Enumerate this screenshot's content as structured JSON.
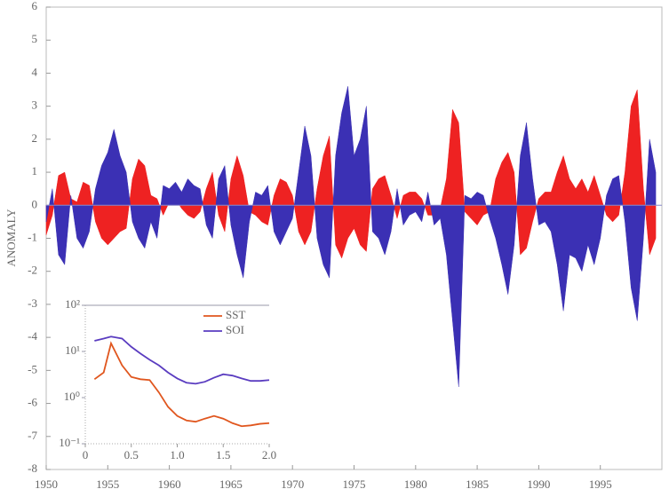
{
  "chart_data": [
    {
      "type": "area",
      "ylabel": "ANOMALY",
      "x": [
        1950,
        1950.5,
        1951,
        1951.5,
        1952,
        1952.5,
        1953,
        1953.5,
        1954,
        1954.5,
        1955,
        1955.5,
        1956,
        1956.5,
        1957,
        1957.5,
        1958,
        1958.5,
        1959,
        1959.5,
        1960,
        1960.5,
        1961,
        1961.5,
        1962,
        1962.5,
        1963,
        1963.5,
        1964,
        1964.5,
        1965,
        1965.5,
        1966,
        1966.5,
        1967,
        1967.5,
        1968,
        1968.5,
        1969,
        1969.5,
        1970,
        1970.5,
        1971,
        1971.5,
        1972,
        1972.5,
        1973,
        1973.5,
        1974,
        1974.5,
        1975,
        1975.5,
        1976,
        1976.5,
        1977,
        1977.5,
        1978,
        1978.5,
        1979,
        1979.5,
        1980,
        1980.5,
        1981,
        1981.5,
        1982,
        1982.5,
        1983,
        1983.5,
        1984,
        1984.5,
        1985,
        1985.5,
        1986,
        1986.5,
        1987,
        1987.5,
        1988,
        1988.5,
        1989,
        1989.5,
        1990,
        1990.5,
        1991,
        1991.5,
        1992,
        1992.5,
        1993,
        1993.5,
        1994,
        1994.5,
        1995,
        1995.5,
        1996,
        1996.5,
        1997,
        1997.5,
        1998,
        1998.5,
        1999,
        1999.5
      ],
      "series": [
        {
          "name": "SST",
          "color": "#ee2222",
          "values": [
            -0.9,
            -0.3,
            0.9,
            1.0,
            0.2,
            0.1,
            0.7,
            0.6,
            -0.5,
            -1.0,
            -1.2,
            -1.0,
            -0.8,
            -0.7,
            0.8,
            1.4,
            1.2,
            0.3,
            0.2,
            -0.3,
            0.1,
            0.2,
            -0.1,
            -0.3,
            -0.4,
            -0.2,
            0.5,
            1.0,
            -0.3,
            -0.8,
            0.8,
            1.5,
            0.9,
            -0.2,
            -0.3,
            -0.5,
            -0.6,
            0.3,
            0.8,
            0.7,
            0.3,
            -0.8,
            -1.2,
            -0.8,
            0.5,
            1.5,
            2.1,
            -1.2,
            -1.6,
            -1.0,
            -0.7,
            -1.2,
            -1.4,
            0.5,
            0.8,
            0.9,
            0.3,
            -0.4,
            0.3,
            0.4,
            0.4,
            0.2,
            -0.3,
            -0.3,
            -0.1,
            0.8,
            2.9,
            2.5,
            -0.2,
            -0.4,
            -0.6,
            -0.3,
            -0.2,
            0.8,
            1.3,
            1.6,
            1.0,
            -1.5,
            -1.3,
            -0.5,
            0.2,
            0.4,
            0.4,
            1.0,
            1.5,
            0.8,
            0.5,
            0.8,
            0.4,
            0.9,
            0.3,
            -0.3,
            -0.5,
            -0.3,
            1.0,
            3.0,
            3.5,
            0.5,
            -1.5,
            -1.0
          ]
        },
        {
          "name": "SOI",
          "color": "#3b30b4",
          "values": [
            -0.5,
            0.5,
            -1.5,
            -1.8,
            0.3,
            -1.0,
            -1.3,
            -0.8,
            0.5,
            1.2,
            1.6,
            2.3,
            1.5,
            1.0,
            -0.5,
            -1.0,
            -1.3,
            -0.5,
            -1.0,
            0.6,
            0.5,
            0.7,
            0.4,
            0.8,
            0.6,
            0.5,
            -0.6,
            -1.0,
            0.8,
            1.2,
            -0.6,
            -1.5,
            -2.2,
            -0.5,
            0.4,
            0.3,
            0.6,
            -0.8,
            -1.2,
            -0.8,
            -0.4,
            1.0,
            2.4,
            1.5,
            -1.0,
            -1.8,
            -2.2,
            1.5,
            2.8,
            3.6,
            1.5,
            2.0,
            3.0,
            -0.8,
            -1.0,
            -1.5,
            -0.8,
            0.5,
            -0.6,
            -0.3,
            -0.2,
            -0.5,
            0.4,
            -0.6,
            -0.4,
            -1.5,
            -3.5,
            -5.5,
            0.3,
            0.2,
            0.4,
            0.3,
            -0.4,
            -1.0,
            -1.8,
            -2.7,
            -1.2,
            1.5,
            2.5,
            0.8,
            -0.6,
            -0.5,
            -0.8,
            -1.8,
            -3.2,
            -1.5,
            -1.6,
            -2.0,
            -1.2,
            -1.8,
            -1.0,
            0.3,
            0.8,
            0.9,
            -0.5,
            -2.5,
            -3.5,
            -1.0,
            2.0,
            1.0
          ]
        }
      ],
      "xlim": [
        1950,
        2000
      ],
      "xticks": [
        1950,
        1955,
        1960,
        1965,
        1970,
        1975,
        1980,
        1985,
        1990,
        1995
      ],
      "ylim": [
        -8,
        6
      ],
      "yticks": [
        -8,
        -7,
        -6,
        -5,
        -4,
        -3,
        -2,
        -1,
        0,
        1,
        2,
        3,
        4,
        5,
        6
      ]
    },
    {
      "type": "line",
      "log_y": true,
      "x": [
        0.1,
        0.2,
        0.28,
        0.4,
        0.5,
        0.6,
        0.7,
        0.8,
        0.9,
        1.0,
        1.1,
        1.2,
        1.3,
        1.4,
        1.5,
        1.6,
        1.7,
        1.8,
        1.9,
        2.0
      ],
      "series": [
        {
          "name": "SST",
          "color": "#e0561e",
          "values": [
            2.5,
            3.5,
            15,
            5,
            2.8,
            2.5,
            2.4,
            1.3,
            0.63,
            0.4,
            0.32,
            0.3,
            0.35,
            0.4,
            0.35,
            0.28,
            0.24,
            0.25,
            0.27,
            0.28
          ]
        },
        {
          "name": "SOI",
          "color": "#5a3cc0",
          "values": [
            17,
            19,
            21,
            19,
            12.6,
            9,
            6.6,
            5,
            3.5,
            2.6,
            2.1,
            2,
            2.2,
            2.7,
            3.2,
            3,
            2.6,
            2.3,
            2.3,
            2.4
          ]
        }
      ],
      "xlim": [
        0,
        2
      ],
      "xticks": [
        0,
        0.5,
        {
          "value": 1,
          "label": "1.0"
        },
        1.5,
        {
          "value": 2,
          "label": "2.0"
        }
      ],
      "ylim": [
        0.1,
        100
      ],
      "yticks": [
        {
          "value": 0.1,
          "label": "10⁻¹"
        },
        {
          "value": 1,
          "label": "10⁰"
        },
        {
          "value": 10,
          "label": "10¹"
        },
        {
          "value": 100,
          "label": "10²"
        }
      ]
    }
  ]
}
